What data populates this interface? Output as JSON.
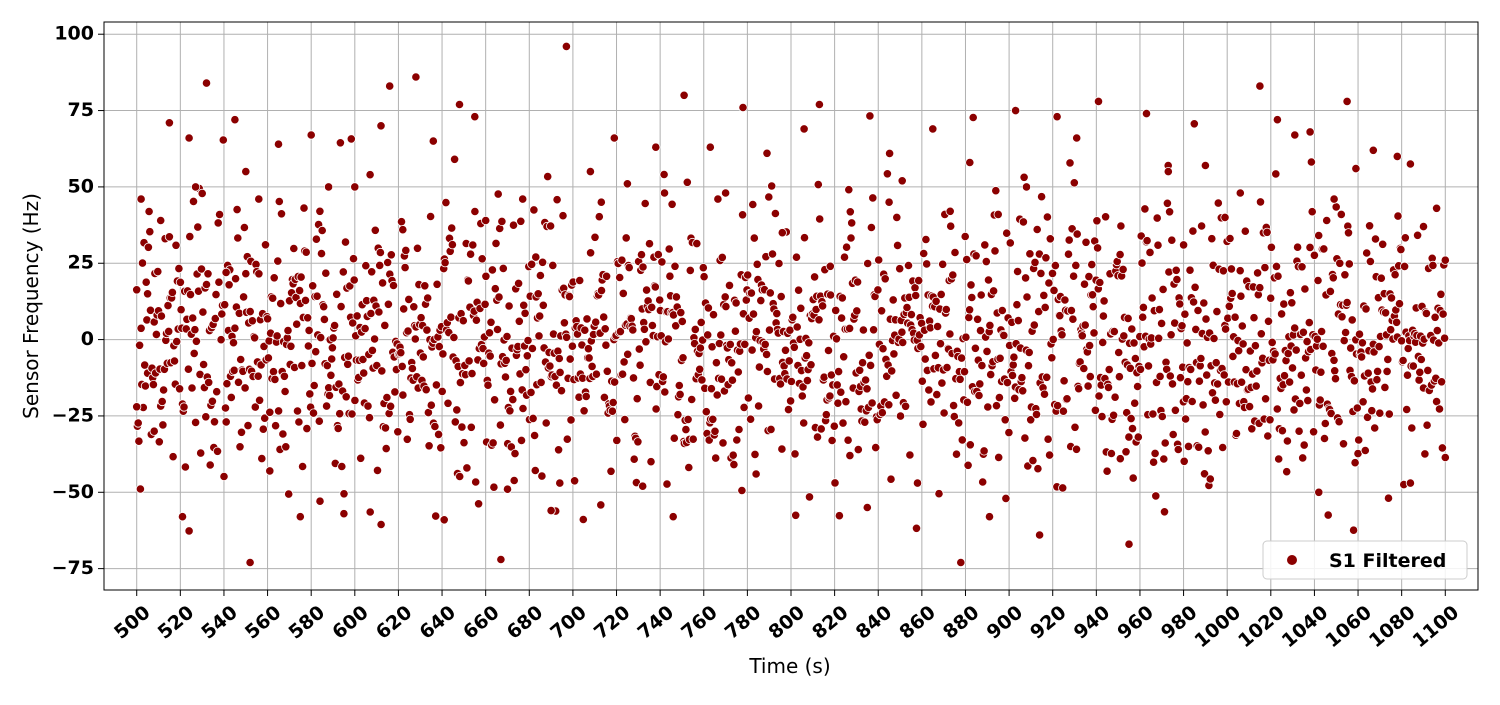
{
  "chart_data": {
    "type": "scatter",
    "title": "",
    "xlabel": "Time (s)",
    "ylabel": "Sensor Frequency (Hz)",
    "xlim": [
      485,
      1115
    ],
    "ylim": [
      -82,
      104
    ],
    "xticks": [
      500,
      520,
      540,
      560,
      580,
      600,
      620,
      640,
      660,
      680,
      700,
      720,
      740,
      760,
      780,
      800,
      820,
      840,
      860,
      880,
      900,
      920,
      940,
      960,
      980,
      1000,
      1020,
      1040,
      1060,
      1080,
      1100
    ],
    "yticks": [
      100,
      75,
      50,
      25,
      0,
      -25,
      -50,
      -75
    ],
    "grid": true,
    "legend_position": "lower-right",
    "colors": {
      "marker": "#8b0000",
      "marker_edge": "#ffffff",
      "grid": "#b0b0b0"
    },
    "series": [
      {
        "name": "S1 Filtered",
        "point_count": 1800,
        "x_range": [
          500,
          1100
        ],
        "y_range": [
          -73,
          96
        ],
        "sampling_interval_s": 0.333,
        "x": [
          500,
          502,
          505,
          508,
          511,
          515,
          521,
          524,
          527,
          532,
          541,
          545,
          550,
          552,
          556,
          561,
          565,
          575,
          580,
          584,
          588,
          595,
          600,
          607,
          612,
          616,
          622,
          628,
          636,
          641,
          648,
          655,
          660,
          667,
          670,
          677,
          683,
          690,
          694,
          697,
          708,
          713,
          719,
          725,
          732,
          738,
          742,
          746,
          751,
          763,
          770,
          778,
          784,
          789,
          796,
          806,
          813,
          818,
          827,
          835,
          845,
          851,
          858,
          865,
          873,
          882,
          891,
          895,
          903,
          908,
          914,
          922,
          931,
          941,
          951,
          955,
          963,
          973,
          980,
          990,
          999,
          1006,
          1015,
          1023,
          1031,
          1038,
          1042,
          1049,
          1055,
          1059,
          1067,
          1078,
          1084,
          1090,
          1096,
          1100
        ],
        "y": [
          -22,
          46,
          15,
          -30,
          39,
          71,
          -58,
          66,
          50,
          84,
          22,
          72,
          55,
          -73,
          46,
          -43,
          64,
          -58,
          67,
          42,
          50,
          -57,
          50,
          54,
          70,
          83,
          36,
          86,
          65,
          -59,
          77,
          73,
          39,
          -72,
          -49,
          46,
          27,
          -56,
          -47,
          96,
          55,
          45,
          66,
          51,
          -48,
          63,
          48,
          -58,
          80,
          63,
          48,
          76,
          -44,
          61,
          35,
          69,
          77,
          24,
          -38,
          -55,
          45,
          52,
          -47,
          69,
          42,
          58,
          -58,
          41,
          75,
          50,
          -64,
          73,
          66,
          78,
          -39,
          -67,
          74,
          55,
          31,
          57,
          40,
          48,
          83,
          72,
          67,
          68,
          -50,
          46,
          78,
          56,
          62,
          60,
          -47,
          37,
          43,
          26
        ]
      }
    ]
  }
}
